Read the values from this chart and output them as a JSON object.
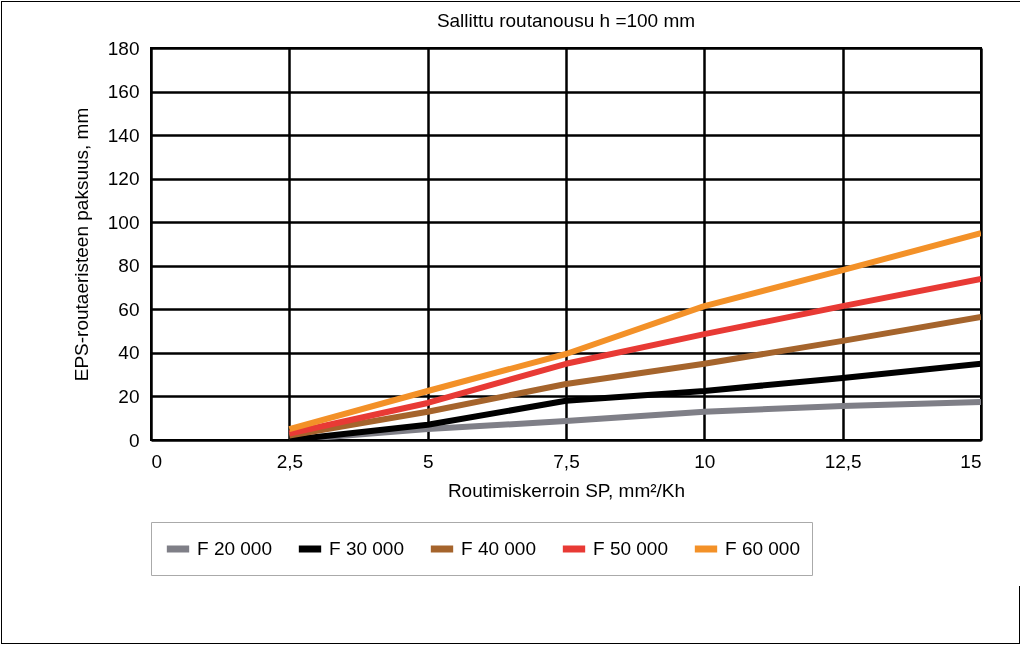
{
  "chart_data": {
    "type": "line",
    "title": "Sallittu routanousu h =100 mm",
    "xlabel": "Routimiskerroin SP, mm²/Kh",
    "ylabel": "EPS-routaeristeen paksuus, mm",
    "x": [
      2.5,
      5,
      7.5,
      10,
      12.5,
      15
    ],
    "series": [
      {
        "name": "F 20 000",
        "color": "#7f7f87",
        "values": [
          0,
          5,
          8.7,
          13,
          15.6,
          17.4
        ]
      },
      {
        "name": "F 30 000",
        "color": "#000000",
        "values": [
          0,
          7,
          18,
          22.5,
          28.5,
          35
        ]
      },
      {
        "name": "F 40 000",
        "color": "#a5642c",
        "values": [
          2,
          13,
          25.7,
          35,
          45.5,
          56.5
        ]
      },
      {
        "name": "F 50 000",
        "color": "#e83a35",
        "values": [
          3,
          17,
          35,
          48.6,
          61.5,
          74
        ]
      },
      {
        "name": "F 60 000",
        "color": "#f39128",
        "values": [
          5,
          22.5,
          39.5,
          61.5,
          78,
          95
        ]
      }
    ],
    "xlim": [
      0,
      15
    ],
    "xticks": [
      0,
      {
        "value": 2.5,
        "label": "2,5"
      },
      5,
      {
        "value": 7.5,
        "label": "7,5"
      },
      10,
      {
        "value": 12.5,
        "label": "12,5"
      },
      15
    ],
    "ylim": [
      0,
      180
    ],
    "yticks": [
      0,
      20,
      40,
      60,
      80,
      100,
      120,
      140,
      160,
      180
    ],
    "grid": true,
    "legend": "bottom",
    "marker": "none",
    "line_style": "solid"
  }
}
